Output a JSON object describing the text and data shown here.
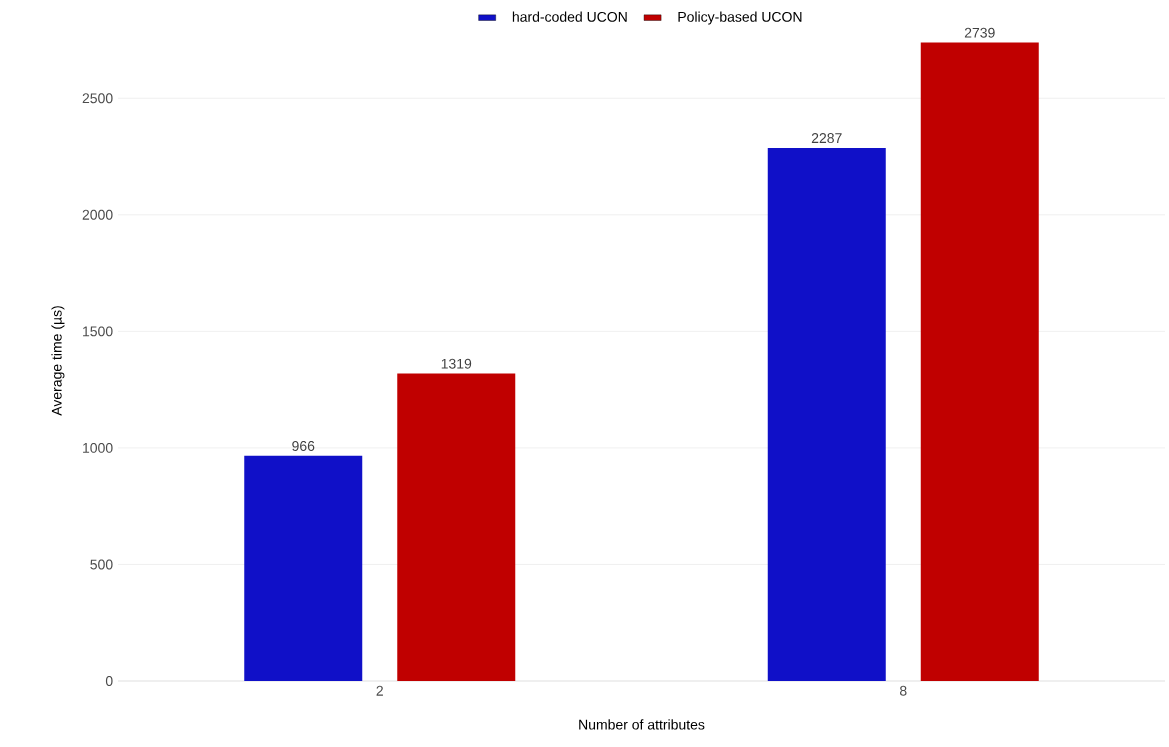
{
  "chart_data": {
    "type": "bar",
    "xlabel": "Number of attributes",
    "ylabel": "Average time (µs)",
    "categories": [
      "2",
      "8"
    ],
    "series": [
      {
        "name": "hard-coded UCON",
        "color": "#1010c8",
        "values": [
          966,
          2287
        ]
      },
      {
        "name": "Policy-based UCON",
        "color": "#c00000",
        "values": [
          1319,
          2739
        ]
      }
    ],
    "ylim": [
      0,
      2750
    ],
    "yticks": [
      0,
      500,
      1000,
      1500,
      2000,
      2500
    ],
    "grid": "y",
    "legend": "top",
    "data_labels": true
  }
}
